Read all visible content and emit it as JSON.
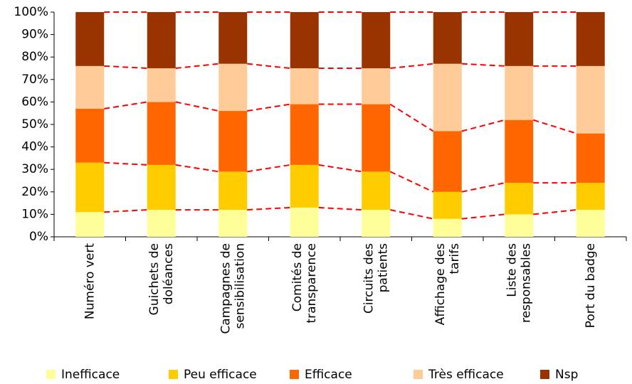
{
  "chart_data": {
    "type": "stacked_bar_100",
    "categories": [
      "Numéro vert",
      "Guichets de\ndoléances",
      "Campagnes de\nsensibilisation",
      "Comités de\ntransparence",
      "Circuits des\npatients",
      "Affichage des\ntarifs",
      "Liste des\nresponsables",
      "Port du badge"
    ],
    "series": [
      {
        "name": "Inefficace",
        "color": "#FFFF99",
        "values": [
          11,
          12,
          12,
          13,
          12,
          8,
          10,
          12
        ]
      },
      {
        "name": "Peu efficace",
        "color": "#FFCC00",
        "values": [
          22,
          20,
          17,
          19,
          17,
          12,
          14,
          12
        ]
      },
      {
        "name": "Efficace",
        "color": "#FF6600",
        "values": [
          24,
          28,
          27,
          27,
          30,
          27,
          28,
          22
        ]
      },
      {
        "name": "Très efficace",
        "color": "#FFCC99",
        "values": [
          19,
          15,
          21,
          16,
          16,
          30,
          24,
          30
        ]
      },
      {
        "name": "Nsp",
        "color": "#993300",
        "values": [
          24,
          25,
          23,
          25,
          25,
          23,
          24,
          24
        ]
      }
    ],
    "ylim": [
      0,
      100
    ],
    "yticks": [
      {
        "value": 0,
        "label": "0%"
      },
      {
        "value": 10,
        "label": "10%"
      },
      {
        "value": 20,
        "label": "20%"
      },
      {
        "value": 30,
        "label": "30%"
      },
      {
        "value": 40,
        "label": "40%"
      },
      {
        "value": 50,
        "label": "50%"
      },
      {
        "value": 60,
        "label": "60%"
      },
      {
        "value": 70,
        "label": "70%"
      },
      {
        "value": 80,
        "label": "80%"
      },
      {
        "value": 90,
        "label": "90%"
      },
      {
        "value": 100,
        "label": "100%"
      }
    ],
    "connector_color": "#FF0000",
    "legend": "bottom"
  }
}
